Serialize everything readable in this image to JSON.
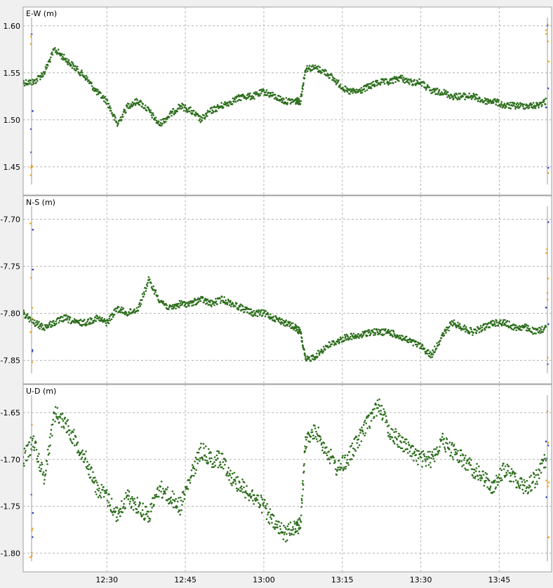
{
  "chart_data": [
    {
      "type": "scatter",
      "title": "E-W (m)",
      "ylim": [
        1.42,
        1.62
      ],
      "yticks": [
        1.45,
        1.5,
        1.55,
        1.6
      ],
      "ytick_labels": [
        "1.45",
        "1.50",
        "1.55",
        "1.60"
      ],
      "grid": true,
      "series": [
        {
          "color": "#2d6e1d",
          "x": [
            "12:14",
            "12:16",
            "12:18",
            "12:20",
            "12:22",
            "12:24",
            "12:26",
            "12:28",
            "12:30",
            "12:32",
            "12:34",
            "12:36",
            "12:38",
            "12:40",
            "12:42",
            "12:44",
            "12:46",
            "12:48",
            "12:50",
            "12:52",
            "12:54",
            "12:56",
            "12:58",
            "13:00",
            "13:02",
            "13:04",
            "13:06",
            "13:07",
            "13:08",
            "13:10",
            "13:12",
            "13:14",
            "13:16",
            "13:18",
            "13:20",
            "13:22",
            "13:24",
            "13:26",
            "13:28",
            "13:30",
            "13:32",
            "13:34",
            "13:36",
            "13:38",
            "13:40",
            "13:42",
            "13:44",
            "13:46",
            "13:48",
            "13:50",
            "13:52",
            "13:54"
          ],
          "y": [
            1.54,
            1.54,
            1.55,
            1.575,
            1.565,
            1.555,
            1.545,
            1.53,
            1.52,
            1.495,
            1.515,
            1.52,
            1.51,
            1.495,
            1.505,
            1.515,
            1.51,
            1.5,
            1.51,
            1.515,
            1.52,
            1.525,
            1.525,
            1.53,
            1.525,
            1.52,
            1.52,
            1.52,
            1.555,
            1.555,
            1.55,
            1.54,
            1.53,
            1.53,
            1.535,
            1.54,
            1.54,
            1.545,
            1.54,
            1.54,
            1.53,
            1.53,
            1.525,
            1.525,
            1.525,
            1.52,
            1.52,
            1.515,
            1.515,
            1.515,
            1.515,
            1.52
          ]
        }
      ]
    },
    {
      "type": "scatter",
      "title": "N-S (m)",
      "ylim": [
        -7.875,
        -7.675
      ],
      "yticks": [
        -7.85,
        -7.8,
        -7.75,
        -7.7
      ],
      "ytick_labels": [
        "-7.85",
        "-7.80",
        "-7.75",
        "-7.70"
      ],
      "grid": true,
      "series": [
        {
          "color": "#2d6e1d",
          "x": [
            "12:14",
            "12:16",
            "12:18",
            "12:20",
            "12:22",
            "12:24",
            "12:26",
            "12:28",
            "12:30",
            "12:32",
            "12:34",
            "12:36",
            "12:38",
            "12:40",
            "12:42",
            "12:44",
            "12:46",
            "12:48",
            "12:50",
            "12:52",
            "12:54",
            "12:56",
            "12:58",
            "13:00",
            "13:02",
            "13:04",
            "13:06",
            "13:07",
            "13:08",
            "13:10",
            "13:12",
            "13:14",
            "13:16",
            "13:18",
            "13:20",
            "13:22",
            "13:24",
            "13:26",
            "13:28",
            "13:30",
            "13:32",
            "13:34",
            "13:36",
            "13:38",
            "13:40",
            "13:42",
            "13:44",
            "13:46",
            "13:48",
            "13:50",
            "13:52",
            "13:54"
          ],
          "y": [
            -7.8,
            -7.81,
            -7.815,
            -7.81,
            -7.805,
            -7.81,
            -7.81,
            -7.805,
            -7.81,
            -7.795,
            -7.8,
            -7.795,
            -7.765,
            -7.785,
            -7.795,
            -7.79,
            -7.79,
            -7.785,
            -7.79,
            -7.785,
            -7.79,
            -7.795,
            -7.8,
            -7.8,
            -7.805,
            -7.81,
            -7.815,
            -7.82,
            -7.85,
            -7.845,
            -7.835,
            -7.83,
            -7.825,
            -7.825,
            -7.82,
            -7.82,
            -7.82,
            -7.825,
            -7.83,
            -7.835,
            -7.845,
            -7.825,
            -7.81,
            -7.815,
            -7.82,
            -7.815,
            -7.81,
            -7.81,
            -7.815,
            -7.815,
            -7.82,
            -7.815
          ]
        }
      ]
    },
    {
      "type": "scatter",
      "title": "U-D (m)",
      "ylim": [
        -1.82,
        -1.62
      ],
      "yticks": [
        -1.8,
        -1.75,
        -1.7,
        -1.65
      ],
      "ytick_labels": [
        "-1.80",
        "-1.75",
        "-1.70",
        "-1.65"
      ],
      "grid": true,
      "series": [
        {
          "color": "#2d6e1d",
          "x": [
            "12:14",
            "12:16",
            "12:18",
            "12:20",
            "12:22",
            "12:24",
            "12:26",
            "12:28",
            "12:30",
            "12:32",
            "12:34",
            "12:36",
            "12:38",
            "12:40",
            "12:42",
            "12:44",
            "12:46",
            "12:48",
            "12:50",
            "12:52",
            "12:54",
            "12:56",
            "12:58",
            "13:00",
            "13:02",
            "13:04",
            "13:06",
            "13:07",
            "13:08",
            "13:10",
            "13:12",
            "13:14",
            "13:16",
            "13:18",
            "13:20",
            "13:22",
            "13:24",
            "13:26",
            "13:28",
            "13:30",
            "13:32",
            "13:34",
            "13:36",
            "13:38",
            "13:40",
            "13:42",
            "13:44",
            "13:46",
            "13:48",
            "13:50",
            "13:52",
            "13:54"
          ],
          "y": [
            -1.7,
            -1.68,
            -1.72,
            -1.65,
            -1.66,
            -1.68,
            -1.7,
            -1.73,
            -1.74,
            -1.76,
            -1.74,
            -1.75,
            -1.76,
            -1.73,
            -1.74,
            -1.75,
            -1.72,
            -1.69,
            -1.7,
            -1.7,
            -1.72,
            -1.73,
            -1.74,
            -1.75,
            -1.77,
            -1.78,
            -1.77,
            -1.77,
            -1.68,
            -1.67,
            -1.69,
            -1.71,
            -1.7,
            -1.68,
            -1.66,
            -1.64,
            -1.67,
            -1.68,
            -1.69,
            -1.7,
            -1.7,
            -1.68,
            -1.69,
            -1.7,
            -1.71,
            -1.72,
            -1.73,
            -1.71,
            -1.72,
            -1.73,
            -1.72,
            -1.7
          ]
        }
      ]
    }
  ],
  "x_axis": {
    "ticks": [
      "12:30",
      "12:45",
      "13:00",
      "13:15",
      "13:30",
      "13:45"
    ]
  },
  "colors": {
    "primary_points": "#2d6e1d",
    "secondary_points": "#f5a623",
    "tertiary_points": "#2a3cc7",
    "grid": "#b4b4b4",
    "plot_bg": "#ffffff"
  }
}
